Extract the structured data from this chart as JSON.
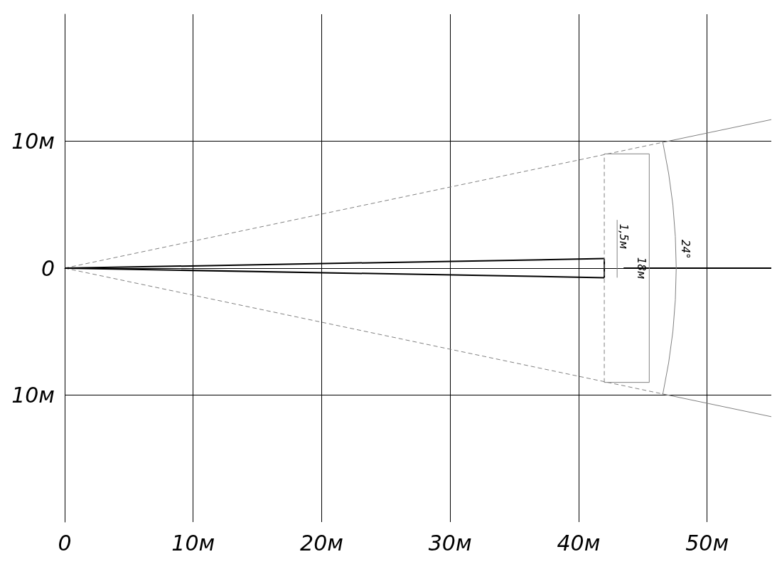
{
  "chart_data": {
    "type": "line",
    "xlim": [
      0,
      55
    ],
    "ylim": [
      -20,
      20
    ],
    "xticks": [
      0,
      {
        "value": 10,
        "label": "10м"
      },
      {
        "value": 20,
        "label": "20м"
      },
      {
        "value": 30,
        "label": "30м"
      },
      {
        "value": 40,
        "label": "40м"
      },
      {
        "value": 50,
        "label": "50м"
      }
    ],
    "yticks": [
      {
        "value": -10,
        "label": "10м"
      },
      0,
      {
        "value": 10,
        "label": "10м"
      }
    ],
    "grid": true,
    "marker": "none",
    "series": [
      {
        "color": "#808080",
        "line_style": "dashed",
        "x": [
          0,
          46.5
        ],
        "values": [
          0,
          9.9
        ]
      },
      {
        "color": "#808080",
        "line_style": "solid",
        "x": [
          46.5,
          55
        ],
        "values": [
          9.9,
          11.7
        ]
      },
      {
        "color": "#808080",
        "line_style": "dashed",
        "x": [
          0,
          46.5
        ],
        "values": [
          0,
          -9.9
        ]
      },
      {
        "color": "#808080",
        "line_style": "solid",
        "x": [
          46.5,
          55
        ],
        "values": [
          -9.9,
          -11.7
        ]
      },
      {
        "color": "#000000",
        "line_style": "solid",
        "x": [
          0,
          42
        ],
        "values": [
          0,
          0.75
        ]
      },
      {
        "color": "#000000",
        "line_style": "solid",
        "x": [
          0,
          42
        ],
        "values": [
          0,
          -0.75
        ]
      },
      {
        "color": "#000000",
        "line_style": "solid",
        "x": [
          42,
          42
        ],
        "values": [
          -0.75,
          0.75
        ]
      },
      {
        "color": "#000000",
        "line_style": "solid",
        "x": [
          43.5,
          55
        ],
        "values": [
          0,
          0
        ]
      },
      {
        "color": "#808080",
        "line_style": "dashed",
        "x": [
          42,
          42
        ],
        "values": [
          -9,
          9
        ]
      },
      {
        "color": "#808080",
        "line_style": "solid",
        "x": [
          45.5,
          45.5
        ],
        "values": [
          -9,
          9
        ]
      },
      {
        "color": "#808080",
        "line_style": "solid",
        "x": [
          42,
          45.5
        ],
        "values": [
          9,
          9
        ]
      },
      {
        "color": "#808080",
        "line_style": "solid",
        "x": [
          42,
          45.5
        ],
        "values": [
          -9,
          -9
        ]
      },
      {
        "color": "#808080",
        "line_style": "solid",
        "x": [
          43,
          43
        ],
        "values": [
          -0.75,
          3.8
        ]
      },
      {
        "color": "#808080",
        "line_style": "solid",
        "x": [
          46.56,
          47.01,
          47.34,
          47.53,
          47.6,
          47.53,
          47.34,
          47.01,
          46.56
        ],
        "values": [
          9.9,
          7.45,
          4.98,
          2.49,
          0,
          -2.49,
          -4.98,
          -7.45,
          -9.9
        ]
      }
    ],
    "annotations": [
      "1,5м",
      "18м",
      "24°"
    ]
  }
}
